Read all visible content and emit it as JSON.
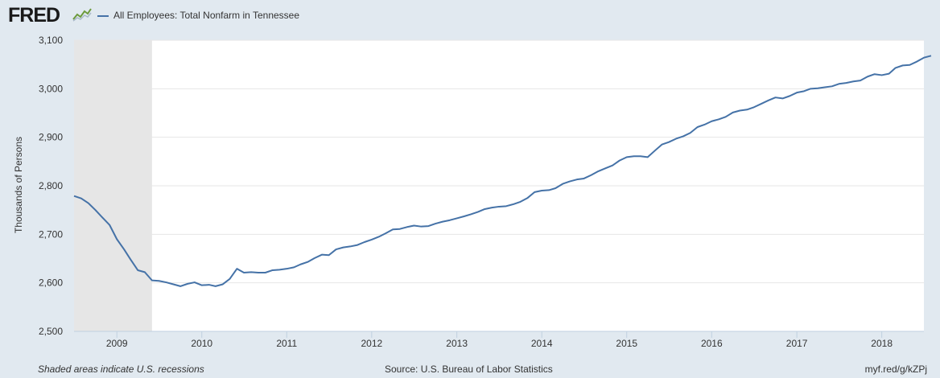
{
  "header": {
    "logo_text": "FRED"
  },
  "chart_data": {
    "type": "line",
    "title": "",
    "xlabel": "",
    "ylabel": "Thousands of Persons",
    "ylim": [
      2500,
      3100
    ],
    "yticks": [
      "2,500",
      "2,600",
      "2,700",
      "2,800",
      "2,900",
      "3,000",
      "3,100"
    ],
    "ytick_values": [
      2500,
      2600,
      2700,
      2800,
      2900,
      3000,
      3100
    ],
    "xlim": [
      "2008-07-01",
      "2018-07-01"
    ],
    "xticks": [
      "2009",
      "2010",
      "2011",
      "2012",
      "2013",
      "2014",
      "2015",
      "2016",
      "2017",
      "2018"
    ],
    "grid": true,
    "legend_position": "top-left",
    "recession_shading": [
      {
        "start": "2008-07-01",
        "end": "2009-06-01"
      }
    ],
    "series": [
      {
        "name": "All Employees: Total Nonfarm in Tennessee",
        "color": "#4572a7",
        "x_start": "2008-07",
        "frequency": "monthly",
        "values": [
          2779,
          2774,
          2764,
          2750,
          2734,
          2719,
          2690,
          2669,
          2648,
          2626,
          2622,
          2605,
          2604,
          2601,
          2597,
          2593,
          2598,
          2601,
          2595,
          2596,
          2593,
          2597,
          2608,
          2629,
          2621,
          2622,
          2621,
          2621,
          2626,
          2627,
          2629,
          2632,
          2638,
          2643,
          2651,
          2658,
          2657,
          2669,
          2673,
          2675,
          2678,
          2684,
          2689,
          2695,
          2702,
          2710,
          2711,
          2715,
          2718,
          2716,
          2717,
          2722,
          2726,
          2729,
          2733,
          2737,
          2741,
          2746,
          2752,
          2755,
          2757,
          2758,
          2762,
          2767,
          2775,
          2787,
          2790,
          2791,
          2795,
          2804,
          2809,
          2813,
          2815,
          2822,
          2830,
          2836,
          2842,
          2852,
          2859,
          2861,
          2861,
          2859,
          2872,
          2885,
          2890,
          2897,
          2902,
          2909,
          2921,
          2926,
          2933,
          2937,
          2942,
          2951,
          2955,
          2957,
          2962,
          2969,
          2976,
          2982,
          2980,
          2985,
          2992,
          2995,
          3000,
          3001,
          3003,
          3005,
          3010,
          3012,
          3015,
          3017,
          3025,
          3030,
          3028,
          3031,
          3043,
          3048,
          3049,
          3056,
          3064,
          3068
        ]
      }
    ]
  },
  "footer": {
    "note": "Shaded areas indicate U.S. recessions",
    "source": "Source: U.S. Bureau of Labor Statistics",
    "url": "myf.red/g/kZPj"
  }
}
